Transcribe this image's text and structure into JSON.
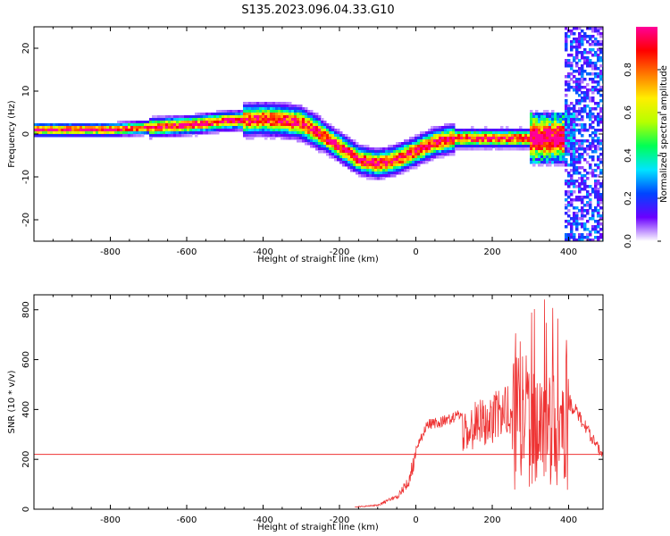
{
  "figure": {
    "title": "S135.2023.096.04.33.G10"
  },
  "chart_data": [
    {
      "type": "heatmap",
      "name": "spectrogram",
      "xlabel": "Height of straight line (km)",
      "ylabel": "Frequency (Hz)",
      "xlim": [
        -1000,
        490
      ],
      "ylim": [
        -25,
        25
      ],
      "x_ticks": [
        -800,
        -600,
        -400,
        -200,
        0,
        200,
        400
      ],
      "y_ticks": [
        20,
        10,
        0,
        -10,
        -20
      ],
      "colorbar": {
        "label": "Normalized spectral amplitude",
        "range": [
          0,
          1
        ],
        "ticks": [
          "0.0",
          "0.2",
          "0.4",
          "0.6",
          "0.8"
        ],
        "stops": [
          "#ffffff",
          "#6a00ff",
          "#0044ff",
          "#00e5ff",
          "#00ff55",
          "#b6ff00",
          "#ffee00",
          "#ff7a00",
          "#ff0000",
          "#ff0099"
        ]
      },
      "ridge": {
        "x": [
          -1000,
          -800,
          -700,
          -600,
          -500,
          -400,
          -350,
          -300,
          -250,
          -200,
          -150,
          -100,
          -50,
          0,
          50,
          100,
          150,
          200,
          250,
          300,
          350,
          400
        ],
        "y": [
          1,
          1,
          1.5,
          2,
          3,
          3.5,
          3.2,
          2.5,
          0,
          -3,
          -6,
          -7,
          -6,
          -4,
          -2,
          -1,
          -1,
          -1,
          -1,
          -1,
          -1,
          -1
        ]
      }
    },
    {
      "type": "line",
      "name": "snr",
      "xlabel": "Height of straight line (km)",
      "ylabel": "SNR (10 * v/v)",
      "xlim": [
        -1000,
        490
      ],
      "ylim": [
        0,
        860
      ],
      "x_ticks": [
        -800,
        -600,
        -400,
        -200,
        0,
        200,
        400
      ],
      "y_ticks": [
        0,
        200,
        400,
        600,
        800
      ],
      "threshold": 220,
      "series_color": "#ee3333",
      "envelope": {
        "x": [
          -160,
          -100,
          -50,
          -20,
          0,
          30,
          60,
          100,
          150,
          200,
          250,
          300,
          350,
          400,
          450,
          490
        ],
        "y": [
          10,
          20,
          60,
          130,
          260,
          360,
          370,
          390,
          430,
          470,
          500,
          560,
          590,
          470,
          340,
          230
        ]
      }
    }
  ]
}
